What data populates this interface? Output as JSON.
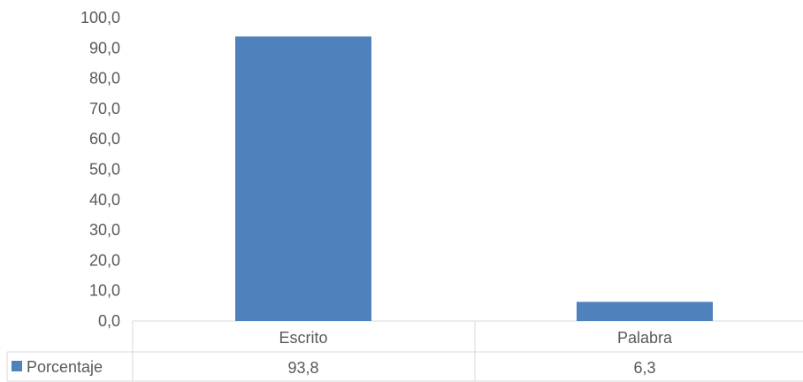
{
  "chart_data": {
    "type": "bar",
    "categories": [
      "Escrito",
      "Palabra"
    ],
    "series": [
      {
        "name": "Porcentaje",
        "values": [
          93.8,
          6.3
        ],
        "value_labels": [
          "93,8",
          "6,3"
        ]
      }
    ],
    "ylim": [
      0,
      100
    ],
    "y_ticks": [
      "0,0",
      "10,0",
      "20,0",
      "30,0",
      "40,0",
      "50,0",
      "60,0",
      "70,0",
      "80,0",
      "90,0",
      "100,0"
    ],
    "y_tick_values": [
      0,
      10,
      20,
      30,
      40,
      50,
      60,
      70,
      80,
      90,
      100
    ],
    "grid": false,
    "legend": "data-table-left",
    "colors": {
      "bar": "#4f81bd",
      "table_line": "#d9d9d9",
      "text": "#595959"
    }
  }
}
